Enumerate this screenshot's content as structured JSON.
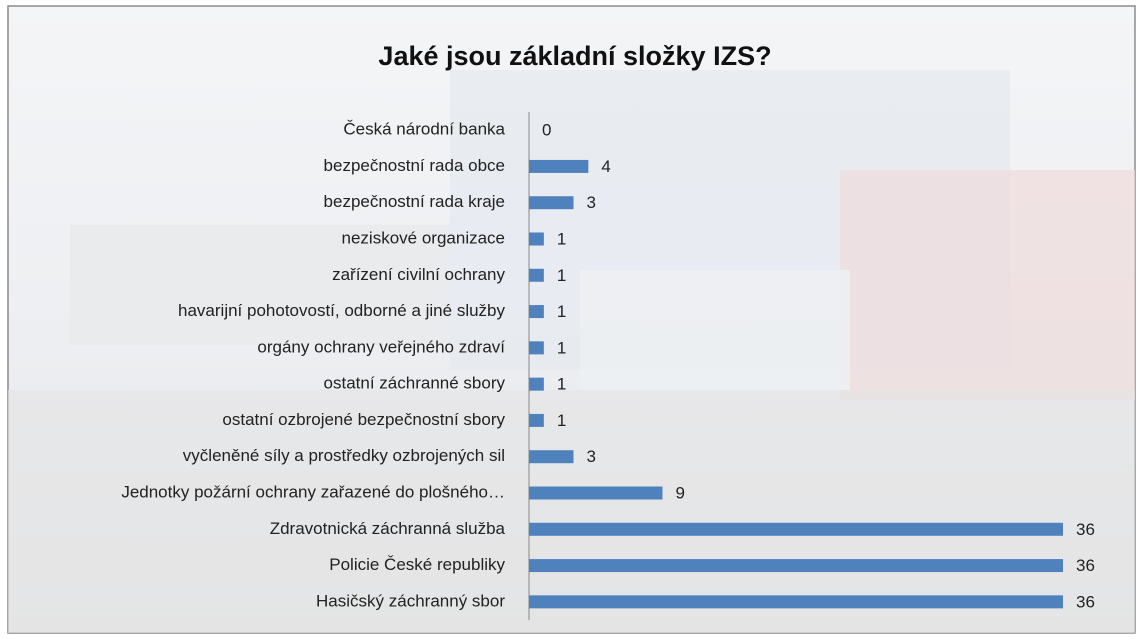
{
  "chart_data": {
    "type": "bar",
    "orientation": "horizontal",
    "title": "Jaké jsou základní složky IZS?",
    "categories": [
      "Česká národní banka",
      "bezpečnostní rada obce",
      "bezpečnostní rada kraje",
      "neziskové organizace",
      "zařízení civilní ochrany",
      "havarijní pohotovostí, odborné a jiné služby",
      "orgány ochrany veřejného zdraví",
      "ostatní záchranné sbory",
      "ostatní ozbrojené bezpečnostní sbory",
      "vyčleněné síly a prostředky ozbrojených sil",
      "Jednotky požární ochrany zařazené do plošného…",
      "Zdravotnická záchranná služba",
      "Policie České republiky",
      "Hasičský záchranný sbor"
    ],
    "values": [
      0,
      4,
      3,
      1,
      1,
      1,
      1,
      1,
      1,
      3,
      9,
      36,
      36,
      36
    ],
    "color": "#4f81bd"
  }
}
